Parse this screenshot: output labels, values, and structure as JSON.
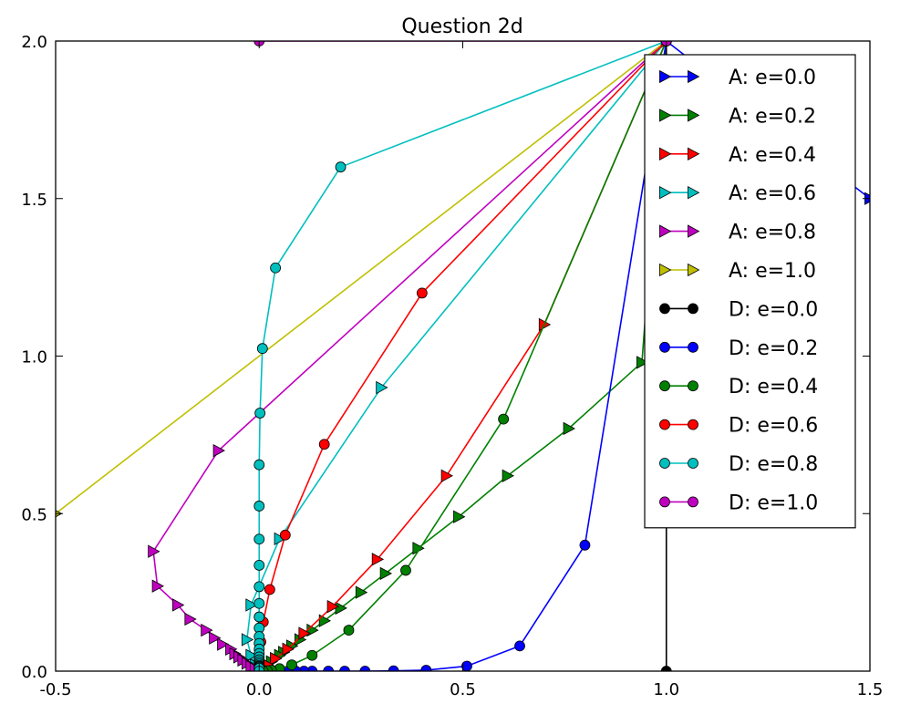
{
  "chart_data": {
    "type": "line",
    "title": "Question 2d",
    "xlabel": "",
    "ylabel": "",
    "xlim": [
      -0.5,
      1.5
    ],
    "ylim": [
      0.0,
      2.0
    ],
    "xticks": [
      "-0.5",
      "0.0",
      "0.5",
      "1.0",
      "1.5"
    ],
    "yticks": [
      "0.0",
      "0.5",
      "1.0",
      "1.5",
      "2.0"
    ],
    "grid": false,
    "legend_position": "upper right",
    "series": [
      {
        "name": "A: e=0.0",
        "color": "#0000ff",
        "marker": "triangle-right",
        "points": [
          [
            1.0,
            2.0
          ],
          [
            1.5,
            1.5
          ]
        ]
      },
      {
        "name": "A: e=0.2",
        "color": "#008000",
        "marker": "triangle-right",
        "points": [
          [
            1.0,
            2.0
          ],
          [
            0.94,
            0.98
          ],
          [
            0.76,
            0.77
          ],
          [
            0.61,
            0.62
          ],
          [
            0.49,
            0.49
          ],
          [
            0.39,
            0.39
          ],
          [
            0.31,
            0.31
          ],
          [
            0.25,
            0.25
          ],
          [
            0.2,
            0.2
          ],
          [
            0.16,
            0.16
          ],
          [
            0.13,
            0.13
          ],
          [
            0.1,
            0.1
          ],
          [
            0.08,
            0.08
          ],
          [
            0.06,
            0.06
          ],
          [
            0.05,
            0.05
          ],
          [
            0.04,
            0.04
          ],
          [
            0.03,
            0.03
          ],
          [
            0.02,
            0.02
          ],
          [
            0.015,
            0.015
          ],
          [
            0.01,
            0.01
          ],
          [
            0.0,
            0.0
          ]
        ]
      },
      {
        "name": "A: e=0.4",
        "color": "#ff0000",
        "marker": "triangle-right",
        "points": [
          [
            1.0,
            2.0
          ],
          [
            0.7,
            1.1
          ],
          [
            0.46,
            0.62
          ],
          [
            0.29,
            0.355
          ],
          [
            0.18,
            0.205
          ],
          [
            0.11,
            0.12
          ],
          [
            0.07,
            0.07
          ],
          [
            0.04,
            0.04
          ],
          [
            0.02,
            0.02
          ],
          [
            0.01,
            0.01
          ],
          [
            0.0,
            0.0
          ]
        ]
      },
      {
        "name": "A: e=0.6",
        "color": "#00bfbf",
        "marker": "triangle-right",
        "points": [
          [
            1.0,
            2.0
          ],
          [
            0.3,
            0.9
          ],
          [
            0.05,
            0.42
          ],
          [
            -0.02,
            0.21
          ],
          [
            -0.03,
            0.1
          ],
          [
            -0.02,
            0.05
          ],
          [
            -0.01,
            0.02
          ],
          [
            0.0,
            0.0
          ]
        ]
      },
      {
        "name": "A: e=0.8",
        "color": "#bf00bf",
        "marker": "triangle-right",
        "points": [
          [
            1.0,
            2.0
          ],
          [
            -0.1,
            0.7
          ],
          [
            -0.26,
            0.38
          ],
          [
            -0.25,
            0.27
          ],
          [
            -0.2,
            0.21
          ],
          [
            -0.17,
            0.165
          ],
          [
            -0.13,
            0.13
          ],
          [
            -0.11,
            0.105
          ],
          [
            -0.09,
            0.085
          ],
          [
            -0.07,
            0.07
          ],
          [
            -0.06,
            0.055
          ],
          [
            -0.05,
            0.045
          ],
          [
            -0.04,
            0.035
          ],
          [
            -0.03,
            0.025
          ],
          [
            -0.02,
            0.015
          ],
          [
            -0.01,
            0.008
          ],
          [
            0.0,
            0.0
          ]
        ]
      },
      {
        "name": "A: e=1.0",
        "color": "#bfbf00",
        "marker": "triangle-right",
        "points": [
          [
            1.0,
            2.0
          ],
          [
            -0.5,
            0.5
          ]
        ]
      },
      {
        "name": "D: e=0.0",
        "color": "#000000",
        "marker": "circle",
        "points": [
          [
            1.0,
            2.0
          ],
          [
            1.0,
            0.0
          ]
        ]
      },
      {
        "name": "D: e=0.2",
        "color": "#0000ff",
        "marker": "circle",
        "points": [
          [
            1.0,
            2.0
          ],
          [
            0.8,
            0.4
          ],
          [
            0.64,
            0.08
          ],
          [
            0.51,
            0.016
          ],
          [
            0.41,
            0.003
          ],
          [
            0.33,
            0.001
          ],
          [
            0.26,
            0.0
          ],
          [
            0.21,
            0.0
          ],
          [
            0.17,
            0.0
          ],
          [
            0.13,
            0.0
          ],
          [
            0.11,
            0.0
          ],
          [
            0.09,
            0.0
          ],
          [
            0.07,
            0.0
          ],
          [
            0.05,
            0.0
          ],
          [
            0.04,
            0.0
          ],
          [
            0.03,
            0.0
          ],
          [
            0.02,
            0.0
          ],
          [
            0.01,
            0.0
          ],
          [
            0.0,
            0.0
          ]
        ]
      },
      {
        "name": "D: e=0.4",
        "color": "#008000",
        "marker": "circle",
        "points": [
          [
            1.0,
            2.0
          ],
          [
            0.6,
            0.8
          ],
          [
            0.36,
            0.32
          ],
          [
            0.22,
            0.13
          ],
          [
            0.13,
            0.05
          ],
          [
            0.08,
            0.02
          ],
          [
            0.05,
            0.008
          ],
          [
            0.03,
            0.003
          ],
          [
            0.02,
            0.001
          ],
          [
            0.01,
            0.0
          ],
          [
            0.0,
            0.0
          ]
        ]
      },
      {
        "name": "D: e=0.6",
        "color": "#ff0000",
        "marker": "circle",
        "points": [
          [
            1.0,
            2.0
          ],
          [
            0.4,
            1.2
          ],
          [
            0.16,
            0.72
          ],
          [
            0.064,
            0.432
          ],
          [
            0.026,
            0.259
          ],
          [
            0.01,
            0.156
          ],
          [
            0.004,
            0.093
          ],
          [
            0.0,
            0.0
          ]
        ]
      },
      {
        "name": "D: e=0.8",
        "color": "#00bfbf",
        "marker": "circle",
        "points": [
          [
            1.0,
            2.0
          ],
          [
            0.2,
            1.6
          ],
          [
            0.04,
            1.28
          ],
          [
            0.008,
            1.024
          ],
          [
            0.002,
            0.819
          ],
          [
            0.0,
            0.655
          ],
          [
            0.0,
            0.524
          ],
          [
            0.0,
            0.419
          ],
          [
            0.0,
            0.336
          ],
          [
            0.0,
            0.268
          ],
          [
            0.0,
            0.215
          ],
          [
            0.0,
            0.172
          ],
          [
            0.0,
            0.137
          ],
          [
            0.0,
            0.11
          ],
          [
            0.0,
            0.088
          ],
          [
            0.0,
            0.07
          ],
          [
            0.0,
            0.056
          ],
          [
            0.0,
            0.045
          ],
          [
            0.0,
            0.036
          ],
          [
            0.0,
            0.029
          ],
          [
            0.0,
            0.023
          ],
          [
            0.0,
            0.018
          ],
          [
            0.0,
            0.015
          ],
          [
            0.0,
            0.012
          ],
          [
            0.0,
            0.009
          ],
          [
            0.0,
            0.0
          ]
        ]
      },
      {
        "name": "D: e=1.0",
        "color": "#bf00bf",
        "marker": "circle",
        "points": [
          [
            1.0,
            2.0
          ],
          [
            0.0,
            2.0
          ]
        ]
      }
    ]
  }
}
